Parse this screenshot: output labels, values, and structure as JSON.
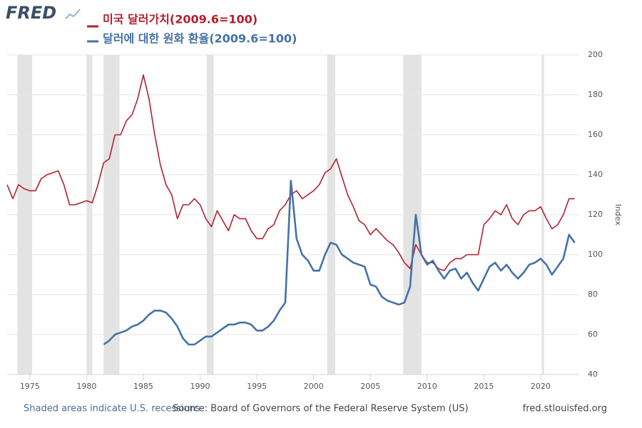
{
  "chart_data": {
    "type": "line",
    "logo": "FRED",
    "ylabel": "Index",
    "note": "Shaded areas indicate U.S. recessions",
    "source": "Source: Board of Governors of the Federal Reserve System (US)",
    "site": "fred.stlouisfed.org",
    "xlim": [
      1973,
      2023.4
    ],
    "xticks": [
      1975,
      1980,
      1985,
      1990,
      1995,
      2000,
      2005,
      2010,
      2015,
      2020
    ],
    "ylim": [
      40,
      200
    ],
    "yticks": [
      40,
      60,
      80,
      100,
      120,
      140,
      160,
      180,
      200
    ],
    "grid": true,
    "recessions": [
      [
        1973.9,
        1975.2
      ],
      [
        1980.0,
        1980.5
      ],
      [
        1981.5,
        1982.9
      ],
      [
        1990.6,
        1991.2
      ],
      [
        2001.2,
        2001.9
      ],
      [
        2007.9,
        2009.5
      ],
      [
        2020.1,
        2020.3
      ]
    ],
    "x": [
      1973.0,
      1973.5,
      1974.0,
      1974.5,
      1975.0,
      1975.5,
      1976.0,
      1976.5,
      1977.0,
      1977.5,
      1978.0,
      1978.5,
      1979.0,
      1979.5,
      1980.0,
      1980.5,
      1981.0,
      1981.5,
      1982.0,
      1982.5,
      1983.0,
      1983.5,
      1984.0,
      1984.5,
      1985.0,
      1985.5,
      1986.0,
      1986.5,
      1987.0,
      1987.5,
      1988.0,
      1988.5,
      1989.0,
      1989.5,
      1990.0,
      1990.5,
      1991.0,
      1991.5,
      1992.0,
      1992.5,
      1993.0,
      1993.5,
      1994.0,
      1994.5,
      1995.0,
      1995.5,
      1996.0,
      1996.5,
      1997.0,
      1997.5,
      1998.0,
      1998.5,
      1999.0,
      1999.5,
      2000.0,
      2000.5,
      2001.0,
      2001.5,
      2002.0,
      2002.5,
      2003.0,
      2003.5,
      2004.0,
      2004.5,
      2005.0,
      2005.5,
      2006.0,
      2006.5,
      2007.0,
      2007.5,
      2008.0,
      2008.5,
      2009.0,
      2009.5,
      2010.0,
      2010.5,
      2011.0,
      2011.5,
      2012.0,
      2012.5,
      2013.0,
      2013.5,
      2014.0,
      2014.5,
      2015.0,
      2015.5,
      2016.0,
      2016.5,
      2017.0,
      2017.5,
      2018.0,
      2018.5,
      2019.0,
      2019.5,
      2020.0,
      2020.5,
      2021.0,
      2021.5,
      2022.0,
      2022.5,
      2023.0
    ],
    "series": [
      {
        "name": "미국 달러가치(2009.6=100)",
        "color": "#b22030",
        "values": [
          135,
          128,
          135,
          133,
          132,
          132,
          138,
          140,
          141,
          142,
          135,
          125,
          125,
          126,
          127,
          126,
          135,
          146,
          148,
          160,
          160,
          167,
          170,
          178,
          190,
          178,
          160,
          145,
          135,
          130,
          118,
          125,
          125,
          128,
          125,
          118,
          114,
          122,
          117,
          112,
          120,
          118,
          118,
          112,
          108,
          108,
          113,
          115,
          122,
          125,
          130,
          132,
          128,
          130,
          132,
          135,
          141,
          143,
          148,
          139,
          130,
          124,
          117,
          115,
          110,
          113,
          110,
          107,
          105,
          101,
          96,
          93,
          105,
          100,
          96,
          96,
          93,
          92,
          96,
          98,
          98,
          100,
          100,
          100,
          115,
          118,
          122,
          120,
          125,
          118,
          115,
          120,
          122,
          122,
          124,
          118,
          113,
          115,
          120,
          128,
          128
        ]
      },
      {
        "name": "달러에 대한 원화 환율(2009.6=100)",
        "color": "#4572a7",
        "values": [
          null,
          null,
          null,
          null,
          null,
          null,
          null,
          null,
          null,
          null,
          null,
          null,
          null,
          null,
          null,
          null,
          null,
          55,
          57,
          60,
          61,
          62,
          64,
          65,
          67,
          70,
          72,
          72,
          71,
          68,
          64,
          58,
          55,
          55,
          57,
          59,
          59,
          61,
          63,
          65,
          65,
          66,
          66,
          65,
          62,
          62,
          64,
          67,
          72,
          76,
          137,
          108,
          100,
          97,
          92,
          92,
          100,
          106,
          105,
          100,
          98,
          96,
          95,
          94,
          85,
          84,
          79,
          77,
          76,
          75,
          76,
          84,
          120,
          100,
          95,
          97,
          92,
          88,
          92,
          93,
          88,
          91,
          86,
          82,
          88,
          94,
          96,
          92,
          95,
          91,
          88,
          91,
          95,
          96,
          98,
          95,
          90,
          94,
          98,
          110,
          106
        ]
      }
    ]
  }
}
